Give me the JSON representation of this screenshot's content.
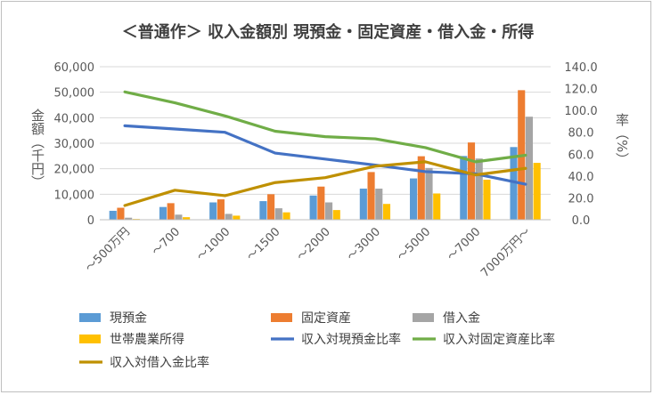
{
  "chart_data": {
    "type": "bar",
    "title": "＜普通作＞ 収入金額別 現預金・固定資産・借入金・所得",
    "ylabel_left": "金額（千円）",
    "ylabel_right": "率（%）",
    "categories": [
      "～500万円",
      "～700",
      "～1000",
      "～1500",
      "～2000",
      "～3000",
      "～5000",
      "～7000",
      "7000万円～"
    ],
    "ylim_left": [
      0,
      60000
    ],
    "yticks_left": [
      "0",
      "10,000",
      "20,000",
      "30,000",
      "40,000",
      "50,000",
      "60,000"
    ],
    "ylim_right": [
      0,
      140
    ],
    "yticks_right": [
      "0.0",
      "20.0",
      "40.0",
      "60.0",
      "80.0",
      "100.0",
      "120.0",
      "140.0"
    ],
    "grid": true,
    "legend_position": "bottom",
    "series": [
      {
        "name": "現預金",
        "type": "bar",
        "axis": "left",
        "color": "#5B9BD5",
        "values": [
          3500,
          5000,
          6800,
          7300,
          9500,
          12200,
          16200,
          25000,
          28500
        ]
      },
      {
        "name": "固定資産",
        "type": "bar",
        "axis": "left",
        "color": "#ED7D31",
        "values": [
          4700,
          6500,
          8000,
          10000,
          13000,
          18700,
          24900,
          30300,
          50800
        ]
      },
      {
        "name": "借入金",
        "type": "bar",
        "axis": "left",
        "color": "#A5A5A5",
        "values": [
          800,
          2000,
          2300,
          4500,
          6800,
          12200,
          20300,
          24000,
          40400
        ]
      },
      {
        "name": "世帯農業所得",
        "type": "bar",
        "axis": "left",
        "color": "#FFC000",
        "values": [
          300,
          1000,
          1600,
          2900,
          3800,
          6200,
          10300,
          15700,
          22300
        ]
      },
      {
        "name": "収入対現預金比率",
        "type": "line",
        "axis": "right",
        "color": "#4472C4",
        "values": [
          86.0,
          83.0,
          80.0,
          61.0,
          55.5,
          50.0,
          44.0,
          42.0,
          32.5
        ]
      },
      {
        "name": "収入対固定資産比率",
        "type": "line",
        "axis": "right",
        "color": "#70AD47",
        "values": [
          117.0,
          107.0,
          95.0,
          81.0,
          76.0,
          74.0,
          66.0,
          53.0,
          59.0
        ]
      },
      {
        "name": "収入対借入金比率",
        "type": "line",
        "axis": "right",
        "color": "#BF9000",
        "values": [
          13.0,
          27.0,
          22.0,
          34.0,
          38.5,
          49.0,
          53.0,
          41.0,
          47.0
        ]
      }
    ]
  }
}
